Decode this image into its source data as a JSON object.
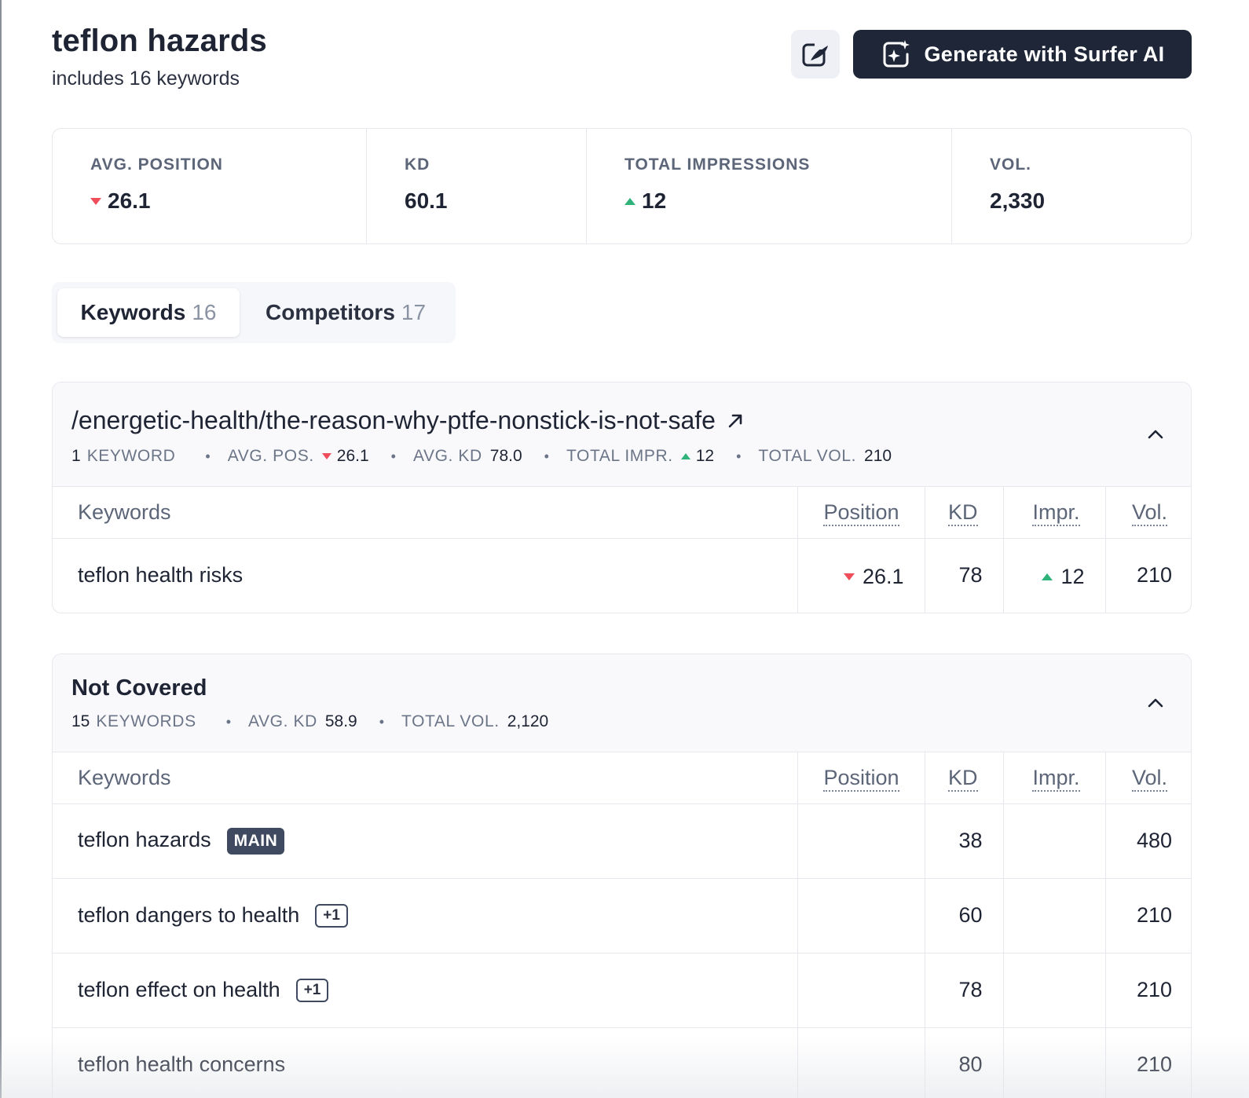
{
  "header": {
    "title": "teflon hazards",
    "subtitle": "includes 16 keywords",
    "generate_label": "Generate with Surfer AI",
    "edit_icon": "edit-sparkle-icon",
    "generate_icon": "ai-sparkle-icon"
  },
  "stats": {
    "avg_position": {
      "label": "AVG. POSITION",
      "value": "26.1",
      "trend": "down"
    },
    "kd": {
      "label": "KD",
      "value": "60.1"
    },
    "total_impressions": {
      "label": "TOTAL IMPRESSIONS",
      "value": "12",
      "trend": "up"
    },
    "vol": {
      "label": "VOL.",
      "value": "2,330"
    }
  },
  "tabs": [
    {
      "label": "Keywords",
      "count": "16",
      "active": true
    },
    {
      "label": "Competitors",
      "count": "17",
      "active": false
    }
  ],
  "columns": {
    "keywords": "Keywords",
    "position": "Position",
    "kd": "KD",
    "impr": "Impr.",
    "vol": "Vol."
  },
  "groups": [
    {
      "title": "/energetic-health/the-reason-why-ptfe-nonstick-is-not-safe",
      "meta": {
        "keyword_count": "1",
        "keyword_label": "KEYWORD",
        "avg_pos_label": "AVG. POS.",
        "avg_pos": "26.1",
        "avg_kd_label": "AVG. KD",
        "avg_kd": "78.0",
        "total_impr_label": "TOTAL IMPR.",
        "total_impr": "12",
        "total_vol_label": "TOTAL VOL.",
        "total_vol": "210"
      },
      "rows": [
        {
          "keyword": "teflon health risks",
          "position": "26.1",
          "kd": "78",
          "impr": "12",
          "vol": "210"
        }
      ]
    },
    {
      "title": "Not Covered",
      "meta": {
        "keyword_count": "15",
        "keyword_label": "KEYWORDS",
        "avg_kd_label": "AVG. KD",
        "avg_kd": "58.9",
        "total_vol_label": "TOTAL VOL.",
        "total_vol": "2,120"
      },
      "rows": [
        {
          "keyword": "teflon hazards",
          "badge": "MAIN",
          "kd": "38",
          "vol": "480"
        },
        {
          "keyword": "teflon dangers to health",
          "badge": "+1",
          "kd": "60",
          "vol": "210"
        },
        {
          "keyword": "teflon effect on health",
          "badge": "+1",
          "kd": "78",
          "vol": "210"
        },
        {
          "keyword": "teflon health concerns",
          "kd": "80",
          "vol": "210"
        }
      ]
    }
  ]
}
